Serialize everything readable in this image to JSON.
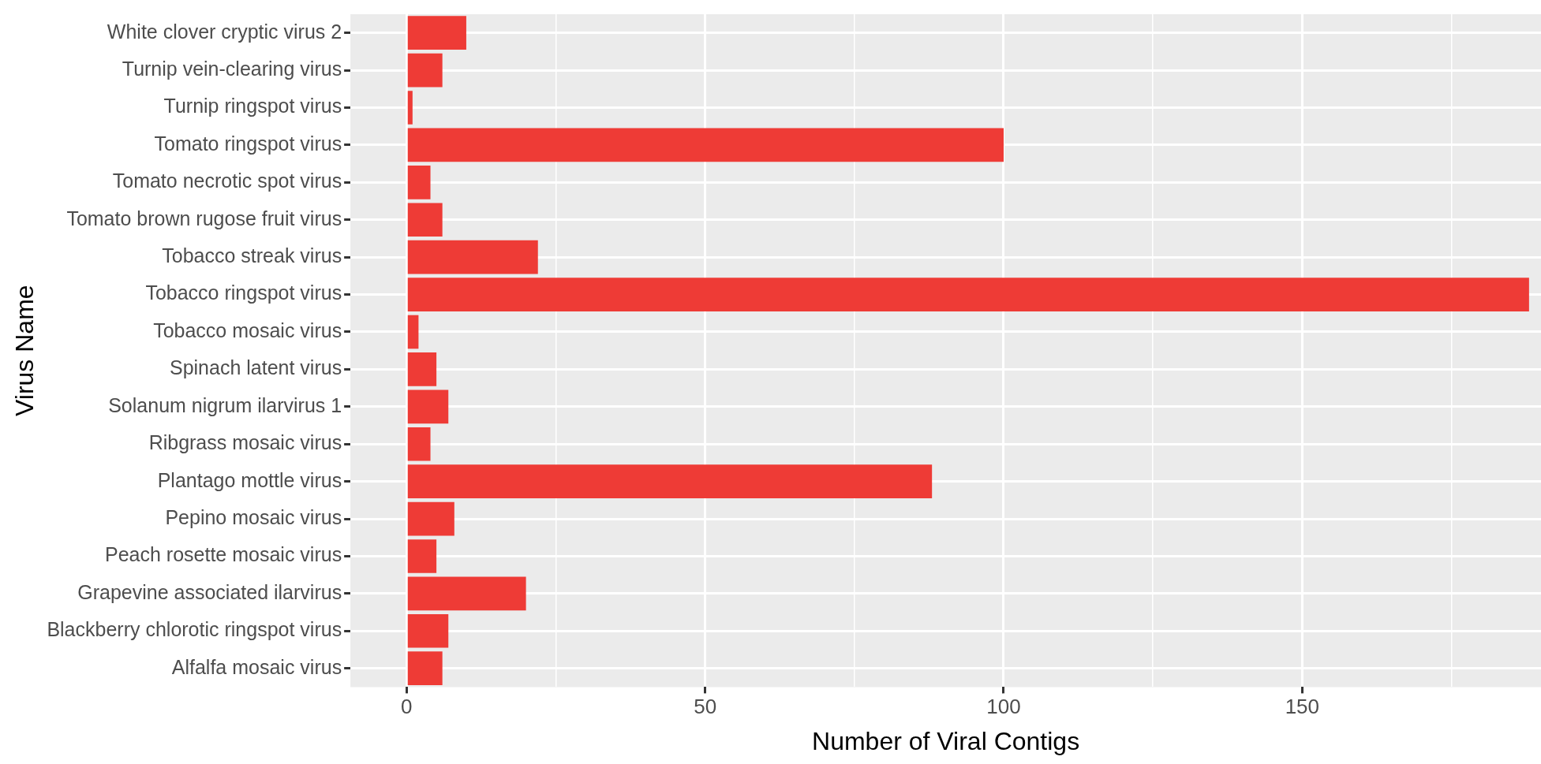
{
  "chart_data": {
    "type": "bar",
    "orientation": "horizontal",
    "xlabel": "Number of Viral Contigs",
    "ylabel": "Virus Name",
    "categories": [
      "White clover cryptic virus 2",
      "Turnip vein-clearing virus",
      "Turnip ringspot virus",
      "Tomato ringspot virus",
      "Tomato necrotic spot virus",
      "Tomato brown rugose fruit virus",
      "Tobacco streak virus",
      "Tobacco ringspot virus",
      "Tobacco mosaic virus",
      "Spinach latent virus",
      "Solanum nigrum ilarvirus 1",
      "Ribgrass mosaic virus",
      "Plantago mottle virus",
      "Pepino mosaic virus",
      "Peach rosette mosaic virus",
      "Grapevine associated ilarvirus",
      "Blackberry chlorotic ringspot virus",
      "Alfalfa mosaic virus"
    ],
    "values": [
      10,
      6,
      1,
      100,
      4,
      6,
      22,
      188,
      2,
      5,
      7,
      4,
      88,
      8,
      5,
      20,
      7,
      6
    ],
    "color": "#ee3b36",
    "xlim": [
      -9.4,
      190
    ],
    "xticks": [
      0,
      {
        "value": 25,
        "label": null
      },
      50,
      {
        "value": 75,
        "label": null
      },
      100,
      {
        "value": 125,
        "label": null
      },
      150,
      {
        "value": 175,
        "label": null
      }
    ],
    "grid": true,
    "legend": false
  }
}
